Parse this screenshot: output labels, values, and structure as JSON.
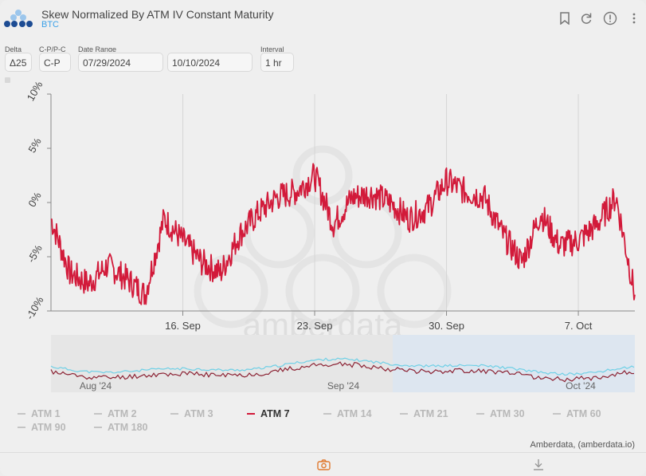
{
  "header": {
    "title": "Skew Normalized By ATM IV Constant Maturity",
    "subtitle": "BTC"
  },
  "controls": {
    "delta": {
      "label": "Delta",
      "value": "Δ25"
    },
    "cpc": {
      "label": "C-P/P-C",
      "value": "C-P"
    },
    "date_range": {
      "label": "Date Range",
      "start": "07/29/2024",
      "end": "10/10/2024"
    },
    "interval": {
      "label": "Interval",
      "value": "1 hr"
    }
  },
  "watermark": "amberdata",
  "credits": "Amberdata, (amberdata.io)",
  "colors": {
    "active_series": "#d21a3a",
    "navigator_line": "#6fd0e6",
    "subtitle": "#3aa0e8",
    "accent": "#e07a30"
  },
  "chart_data": {
    "type": "line",
    "title": "",
    "ylabel": "",
    "yticks": [
      "-10%",
      "-5%",
      "0%",
      "5%",
      "10%"
    ],
    "ylim": [
      -10,
      10
    ],
    "xticks": [
      "16. Sep",
      "23. Sep",
      "30. Sep",
      "7. Oct"
    ],
    "xlim": [
      "2024-09-09",
      "2024-10-10"
    ],
    "grid": "vertical",
    "series": [
      {
        "name": "ATM 7",
        "x": [
          "2024-09-09",
          "2024-09-10",
          "2024-09-11",
          "2024-09-12",
          "2024-09-13",
          "2024-09-14",
          "2024-09-15",
          "2024-09-16",
          "2024-09-17",
          "2024-09-18",
          "2024-09-19",
          "2024-09-20",
          "2024-09-21",
          "2024-09-22",
          "2024-09-23",
          "2024-09-24",
          "2024-09-25",
          "2024-09-26",
          "2024-09-27",
          "2024-09-28",
          "2024-09-29",
          "2024-09-30",
          "2024-10-01",
          "2024-10-02",
          "2024-10-03",
          "2024-10-04",
          "2024-10-05",
          "2024-10-06",
          "2024-10-07",
          "2024-10-08",
          "2024-10-09",
          "2024-10-10"
        ],
        "values": [
          -1.5,
          -6.5,
          -7.5,
          -5.8,
          -7.0,
          -8.5,
          -1.5,
          -3.5,
          -5.5,
          -6.5,
          -3.0,
          -1.0,
          0.5,
          1.0,
          2.5,
          -2.0,
          0.5,
          0.8,
          0.0,
          -1.5,
          -0.5,
          2.0,
          1.0,
          0.5,
          -3.0,
          -5.5,
          -1.0,
          -4.0,
          -3.5,
          -2.0,
          0.5,
          -8.5
        ]
      }
    ],
    "navigator": {
      "xticks": [
        "Aug '24",
        "Sep '24",
        "Oct '24"
      ]
    },
    "legend": [
      {
        "name": "ATM 1",
        "active": false
      },
      {
        "name": "ATM 2",
        "active": false
      },
      {
        "name": "ATM 3",
        "active": false
      },
      {
        "name": "ATM 7",
        "active": true
      },
      {
        "name": "ATM 14",
        "active": false
      },
      {
        "name": "ATM 21",
        "active": false
      },
      {
        "name": "ATM 30",
        "active": false
      },
      {
        "name": "ATM 60",
        "active": false
      },
      {
        "name": "ATM 90",
        "active": false
      },
      {
        "name": "ATM 180",
        "active": false
      }
    ]
  }
}
